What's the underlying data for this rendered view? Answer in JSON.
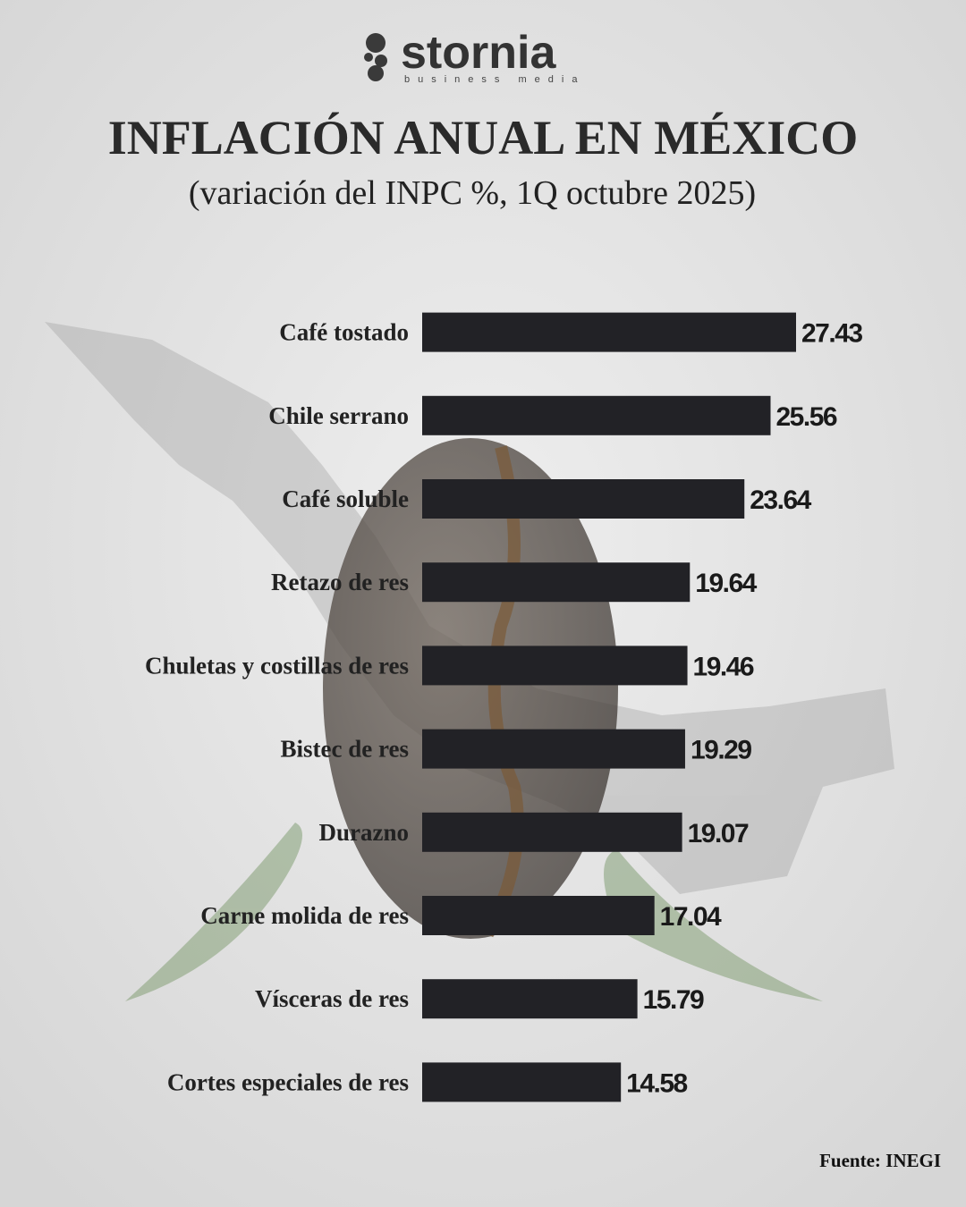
{
  "brand": {
    "name": "stornia",
    "tagline": "business media"
  },
  "chart_data": {
    "type": "bar",
    "orientation": "horizontal",
    "title": "INFLACIÓN ANUAL EN MÉXICO",
    "subtitle": "(variación del INPC %, 1Q octubre 2025)",
    "categories": [
      "Café tostado",
      "Chile serrano",
      "Café soluble",
      "Retazo de res",
      "Chuletas y costillas de res",
      "Bistec de res",
      "Durazno",
      "Carne molida de res",
      "Vísceras de res",
      "Cortes especiales de res"
    ],
    "values": [
      27.43,
      25.56,
      23.64,
      19.64,
      19.46,
      19.29,
      19.07,
      17.04,
      15.79,
      14.58
    ],
    "color": "#222226",
    "source": "Fuente: INEGI"
  }
}
